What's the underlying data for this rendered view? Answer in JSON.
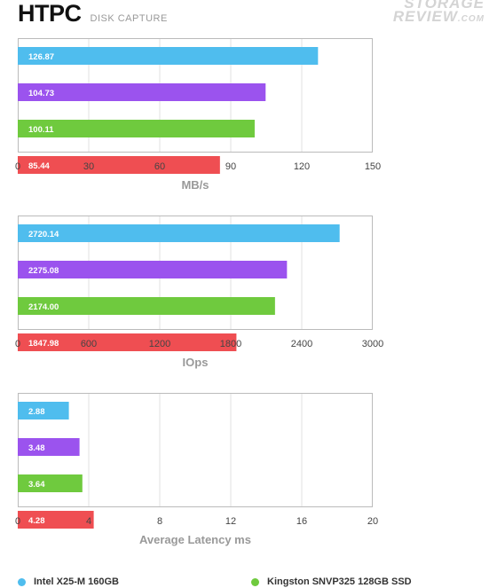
{
  "header": {
    "title": "HTPC",
    "subtitle": "DISK CAPTURE"
  },
  "watermark": {
    "line1": "STORAGE",
    "line2": "REVIEW",
    "line2_suffix": ".COM"
  },
  "colors": {
    "intel": "#4fbdee",
    "purple": "#9b53ee",
    "kingston": "#6fca3e",
    "red": "#ef4e52",
    "grid": "#e2e2e2",
    "frame": "#bbbbbb"
  },
  "chart_data": [
    {
      "type": "bar",
      "orientation": "horizontal",
      "categories": [
        "Intel X25-M 160GB",
        "",
        "Kingston SNVP325 128GB SSD",
        ""
      ],
      "values": [
        126.87,
        104.73,
        100.11,
        85.44
      ],
      "value_labels": [
        "126.87",
        "104.73",
        "100.11",
        "85.44"
      ],
      "xlabel": "MB/s",
      "xlim": [
        0,
        150
      ],
      "ticks": [
        "0",
        "30",
        "60",
        "90",
        "120",
        "150"
      ],
      "tick_values": [
        0,
        30,
        60,
        90,
        120,
        150
      ]
    },
    {
      "type": "bar",
      "orientation": "horizontal",
      "categories": [
        "Intel X25-M 160GB",
        "",
        "Kingston SNVP325 128GB SSD",
        ""
      ],
      "values": [
        2720.14,
        2275.08,
        2174.0,
        1847.98
      ],
      "value_labels": [
        "2720.14",
        "2275.08",
        "2174.00",
        "1847.98"
      ],
      "xlabel": "IOps",
      "xlim": [
        0,
        3000
      ],
      "ticks": [
        "0",
        "600",
        "1200",
        "1800",
        "2400",
        "3000"
      ],
      "tick_values": [
        0,
        600,
        1200,
        1800,
        2400,
        3000
      ]
    },
    {
      "type": "bar",
      "orientation": "horizontal",
      "categories": [
        "Intel X25-M 160GB",
        "",
        "Kingston SNVP325 128GB SSD",
        ""
      ],
      "values": [
        2.88,
        3.48,
        3.64,
        4.28
      ],
      "value_labels": [
        "2.88",
        "3.48",
        "3.64",
        "4.28"
      ],
      "xlabel": "Average Latency ms",
      "xlim": [
        0,
        20
      ],
      "ticks": [
        "0",
        "4",
        "8",
        "12",
        "16",
        "20"
      ],
      "tick_values": [
        0,
        4,
        8,
        12,
        16,
        20
      ]
    }
  ],
  "legend": [
    {
      "label": "Intel X25-M 160GB",
      "color": "#4fbdee"
    },
    {
      "label": "Kingston SNVP325 128GB SSD",
      "color": "#6fca3e"
    }
  ]
}
